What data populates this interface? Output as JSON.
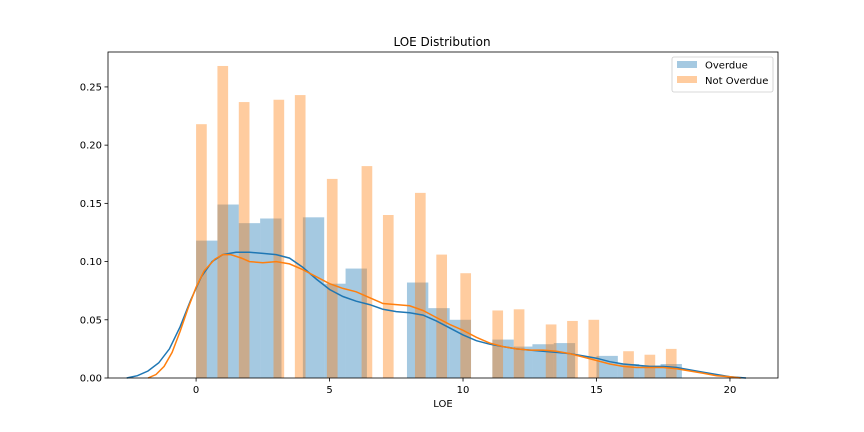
{
  "chart_data": {
    "type": "bar",
    "title": "LOE Distribution",
    "xlabel": "LOE",
    "ylabel": "",
    "xlim": [
      -3.3,
      21.8
    ],
    "ylim": [
      0,
      0.28
    ],
    "xticks": [
      0,
      5,
      10,
      15,
      20
    ],
    "yticks": [
      0.0,
      0.05,
      0.1,
      0.15,
      0.2,
      0.25
    ],
    "ytick_labels": [
      "0.00",
      "0.05",
      "0.10",
      "0.15",
      "0.20",
      "0.25"
    ],
    "legend_position": "top-right",
    "grid": false,
    "series": [
      {
        "name": "Overdue",
        "color": "#1f77b4",
        "bars": [
          {
            "x0": 0.0,
            "x1": 0.8,
            "y": 0.118
          },
          {
            "x0": 0.8,
            "x1": 1.6,
            "y": 0.149
          },
          {
            "x0": 1.6,
            "x1": 2.4,
            "y": 0.133
          },
          {
            "x0": 2.4,
            "x1": 3.2,
            "y": 0.137
          },
          {
            "x0": 4.0,
            "x1": 4.8,
            "y": 0.138
          },
          {
            "x0": 4.8,
            "x1": 5.6,
            "y": 0.081
          },
          {
            "x0": 5.6,
            "x1": 6.4,
            "y": 0.094
          },
          {
            "x0": 7.9,
            "x1": 8.7,
            "y": 0.082
          },
          {
            "x0": 8.7,
            "x1": 9.5,
            "y": 0.06
          },
          {
            "x0": 9.5,
            "x1": 10.3,
            "y": 0.05
          },
          {
            "x0": 11.1,
            "x1": 11.9,
            "y": 0.033
          },
          {
            "x0": 11.9,
            "x1": 12.6,
            "y": 0.027
          },
          {
            "x0": 12.6,
            "x1": 13.4,
            "y": 0.029
          },
          {
            "x0": 13.4,
            "x1": 14.2,
            "y": 0.03
          },
          {
            "x0": 15.0,
            "x1": 15.8,
            "y": 0.019
          },
          {
            "x0": 15.8,
            "x1": 16.6,
            "y": 0.012
          },
          {
            "x0": 16.6,
            "x1": 17.4,
            "y": 0.01
          },
          {
            "x0": 17.4,
            "x1": 18.2,
            "y": 0.012
          }
        ],
        "kde": [
          [
            -2.6,
            0.0
          ],
          [
            -2.2,
            0.002
          ],
          [
            -1.8,
            0.006
          ],
          [
            -1.4,
            0.013
          ],
          [
            -1.0,
            0.025
          ],
          [
            -0.6,
            0.044
          ],
          [
            -0.2,
            0.067
          ],
          [
            0.2,
            0.087
          ],
          [
            0.6,
            0.1
          ],
          [
            1.0,
            0.106
          ],
          [
            1.5,
            0.108
          ],
          [
            2.0,
            0.108
          ],
          [
            2.5,
            0.107
          ],
          [
            3.0,
            0.106
          ],
          [
            3.5,
            0.103
          ],
          [
            4.0,
            0.095
          ],
          [
            4.5,
            0.085
          ],
          [
            5.0,
            0.076
          ],
          [
            5.5,
            0.07
          ],
          [
            6.0,
            0.066
          ],
          [
            6.5,
            0.063
          ],
          [
            7.0,
            0.059
          ],
          [
            7.5,
            0.057
          ],
          [
            8.0,
            0.056
          ],
          [
            8.5,
            0.054
          ],
          [
            9.0,
            0.049
          ],
          [
            9.5,
            0.043
          ],
          [
            10.0,
            0.037
          ],
          [
            10.5,
            0.032
          ],
          [
            11.0,
            0.029
          ],
          [
            11.5,
            0.027
          ],
          [
            12.0,
            0.025
          ],
          [
            12.5,
            0.024
          ],
          [
            13.0,
            0.023
          ],
          [
            13.5,
            0.022
          ],
          [
            14.0,
            0.021
          ],
          [
            14.5,
            0.019
          ],
          [
            15.0,
            0.017
          ],
          [
            15.5,
            0.014
          ],
          [
            16.0,
            0.012
          ],
          [
            16.5,
            0.011
          ],
          [
            17.0,
            0.01
          ],
          [
            17.5,
            0.01
          ],
          [
            18.0,
            0.009
          ],
          [
            18.5,
            0.007
          ],
          [
            19.0,
            0.005
          ],
          [
            19.5,
            0.003
          ],
          [
            20.0,
            0.001
          ],
          [
            20.6,
            0.0
          ]
        ]
      },
      {
        "name": "Not Overdue",
        "color": "#ff7f0e",
        "bars": [
          {
            "x0": 0.0,
            "x1": 0.4,
            "y": 0.218
          },
          {
            "x0": 0.8,
            "x1": 1.2,
            "y": 0.268
          },
          {
            "x0": 1.6,
            "x1": 2.0,
            "y": 0.237
          },
          {
            "x0": 2.9,
            "x1": 3.3,
            "y": 0.239
          },
          {
            "x0": 3.7,
            "x1": 4.1,
            "y": 0.243
          },
          {
            "x0": 4.9,
            "x1": 5.3,
            "y": 0.171
          },
          {
            "x0": 6.2,
            "x1": 6.6,
            "y": 0.182
          },
          {
            "x0": 7.0,
            "x1": 7.4,
            "y": 0.14
          },
          {
            "x0": 8.2,
            "x1": 8.6,
            "y": 0.159
          },
          {
            "x0": 9.0,
            "x1": 9.4,
            "y": 0.106
          },
          {
            "x0": 9.9,
            "x1": 10.3,
            "y": 0.09
          },
          {
            "x0": 11.1,
            "x1": 11.5,
            "y": 0.058
          },
          {
            "x0": 11.9,
            "x1": 12.3,
            "y": 0.059
          },
          {
            "x0": 13.1,
            "x1": 13.5,
            "y": 0.046
          },
          {
            "x0": 13.9,
            "x1": 14.3,
            "y": 0.049
          },
          {
            "x0": 14.7,
            "x1": 15.1,
            "y": 0.05
          },
          {
            "x0": 16.0,
            "x1": 16.4,
            "y": 0.023
          },
          {
            "x0": 16.8,
            "x1": 17.2,
            "y": 0.02
          },
          {
            "x0": 17.6,
            "x1": 18.0,
            "y": 0.025
          }
        ],
        "kde": [
          [
            -1.8,
            0.0
          ],
          [
            -1.5,
            0.003
          ],
          [
            -1.2,
            0.01
          ],
          [
            -0.9,
            0.022
          ],
          [
            -0.6,
            0.04
          ],
          [
            -0.3,
            0.06
          ],
          [
            0.0,
            0.078
          ],
          [
            0.3,
            0.092
          ],
          [
            0.7,
            0.102
          ],
          [
            1.0,
            0.106
          ],
          [
            1.3,
            0.106
          ],
          [
            1.7,
            0.103
          ],
          [
            2.0,
            0.1
          ],
          [
            2.5,
            0.099
          ],
          [
            3.0,
            0.1
          ],
          [
            3.5,
            0.098
          ],
          [
            4.0,
            0.093
          ],
          [
            4.5,
            0.087
          ],
          [
            5.0,
            0.081
          ],
          [
            5.5,
            0.077
          ],
          [
            6.0,
            0.074
          ],
          [
            6.5,
            0.069
          ],
          [
            7.0,
            0.064
          ],
          [
            7.5,
            0.063
          ],
          [
            8.0,
            0.062
          ],
          [
            8.5,
            0.058
          ],
          [
            9.0,
            0.052
          ],
          [
            9.5,
            0.046
          ],
          [
            10.0,
            0.041
          ],
          [
            10.5,
            0.035
          ],
          [
            11.0,
            0.03
          ],
          [
            11.5,
            0.027
          ],
          [
            12.0,
            0.025
          ],
          [
            12.5,
            0.024
          ],
          [
            13.0,
            0.024
          ],
          [
            13.5,
            0.023
          ],
          [
            14.0,
            0.021
          ],
          [
            14.5,
            0.018
          ],
          [
            15.0,
            0.015
          ],
          [
            15.5,
            0.012
          ],
          [
            16.0,
            0.01
          ],
          [
            16.5,
            0.009
          ],
          [
            17.0,
            0.009
          ],
          [
            17.5,
            0.009
          ],
          [
            18.0,
            0.008
          ],
          [
            18.5,
            0.006
          ],
          [
            19.0,
            0.004
          ],
          [
            19.5,
            0.002
          ],
          [
            20.0,
            0.001
          ],
          [
            20.4,
            0.0
          ]
        ]
      }
    ]
  }
}
